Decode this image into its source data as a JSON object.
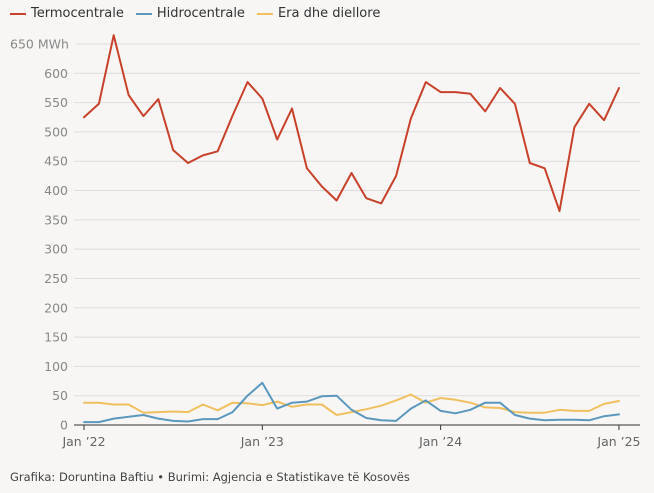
{
  "chart_data": {
    "type": "line",
    "title": "",
    "xlabel": "",
    "ylabel": "MWh",
    "ylim": [
      0,
      650
    ],
    "yticks": [
      0,
      50,
      100,
      150,
      200,
      250,
      300,
      350,
      400,
      450,
      500,
      550,
      600,
      650
    ],
    "ytick_labels": [
      "0",
      "50",
      "100",
      "150",
      "200",
      "250",
      "300",
      "350",
      "400",
      "450",
      "500",
      "550",
      "600",
      "650 MWh"
    ],
    "xtick_labels": [
      "Jan ’22",
      "Jan ’23",
      "Jan ’24",
      "Jan ’25"
    ],
    "xtick_month_index": [
      0,
      12,
      24,
      36
    ],
    "grid": true,
    "legend_position": "top-left",
    "x": [
      "2022-01",
      "2022-02",
      "2022-03",
      "2022-04",
      "2022-05",
      "2022-06",
      "2022-07",
      "2022-08",
      "2022-09",
      "2022-10",
      "2022-11",
      "2022-12",
      "2023-01",
      "2023-02",
      "2023-03",
      "2023-04",
      "2023-05",
      "2023-06",
      "2023-07",
      "2023-08",
      "2023-09",
      "2023-10",
      "2023-11",
      "2023-12",
      "2024-01",
      "2024-02",
      "2024-03",
      "2024-04",
      "2024-05",
      "2024-06",
      "2024-07",
      "2024-08",
      "2024-09",
      "2024-10",
      "2024-11",
      "2024-12",
      "2025-01"
    ],
    "series": [
      {
        "name": "Termocentrale",
        "color": "#c8412a",
        "values": [
          525,
          548,
          665,
          563,
          527,
          556,
          469,
          447,
          460,
          467,
          528,
          585,
          557,
          487,
          540,
          438,
          407,
          383,
          430,
          387,
          378,
          425,
          523,
          585,
          568,
          568,
          565,
          535,
          575,
          548,
          447,
          438,
          365,
          508,
          548,
          520,
          575
        ]
      },
      {
        "name": "Hidrocentrale",
        "color": "#5b98bd",
        "values": [
          5,
          5,
          11,
          14,
          17,
          11,
          7,
          6,
          10,
          10,
          22,
          50,
          72,
          28,
          38,
          40,
          49,
          50,
          26,
          12,
          8,
          7,
          28,
          42,
          24,
          20,
          26,
          38,
          38,
          17,
          11,
          8,
          9,
          9,
          8,
          15,
          18
        ]
      },
      {
        "name": "Era dhe diellore",
        "color": "#f0c060",
        "values": [
          38,
          38,
          35,
          35,
          21,
          22,
          23,
          22,
          35,
          25,
          38,
          37,
          34,
          40,
          31,
          35,
          35,
          17,
          22,
          27,
          33,
          42,
          52,
          38,
          46,
          43,
          38,
          30,
          29,
          22,
          21,
          21,
          26,
          24,
          24,
          36,
          41
        ]
      }
    ]
  },
  "footer": "Grafika: Doruntina Baftiu • Burimi: Agjencia e Statistikave të Kosovës"
}
